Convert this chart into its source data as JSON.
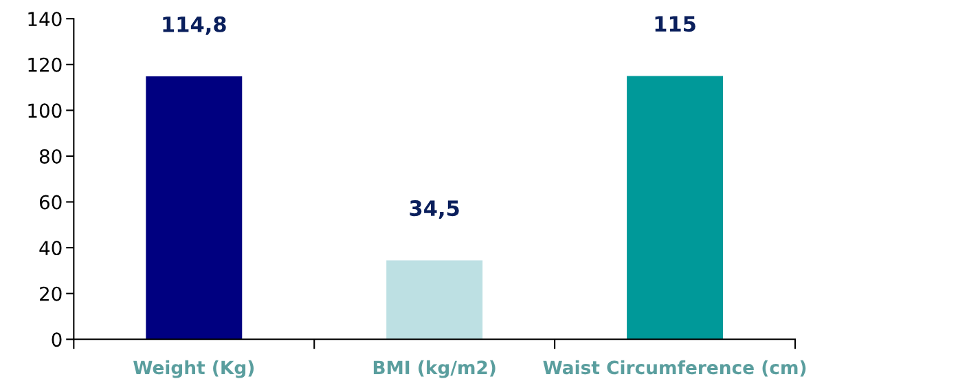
{
  "chart_data": {
    "type": "bar",
    "categories": [
      "Weight (Kg)",
      "BMI (kg/m2)",
      "Waist Circumference (cm)"
    ],
    "values": [
      114.8,
      34.5,
      115
    ],
    "colors": [
      "#000080",
      "#bde0e3",
      "#009999"
    ],
    "value_labels": [
      "114,8",
      "34,5",
      "115"
    ],
    "ylim": [
      0,
      140
    ],
    "yticks": [
      0,
      20,
      40,
      60,
      80,
      100,
      120,
      140
    ],
    "grid": false,
    "legend": false
  }
}
